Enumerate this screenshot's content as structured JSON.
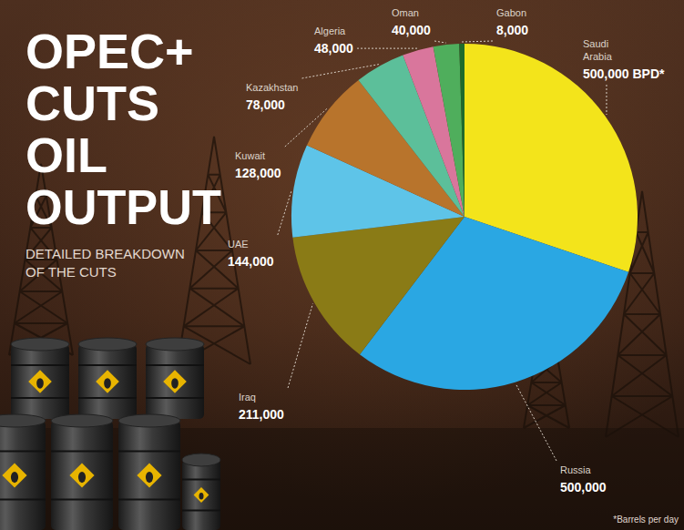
{
  "chart_data": {
    "type": "pie",
    "title": "OPEC+ CUTS OIL OUTPUT",
    "subtitle": "DETAILED BREAKDOWN OF THE CUTS",
    "categories": [
      "Saudi Arabia",
      "Russia",
      "Iraq",
      "UAE",
      "Kuwait",
      "Kazakhstan",
      "Algeria",
      "Oman",
      "Gabon"
    ],
    "values": [
      500000,
      500000,
      211000,
      144000,
      128000,
      78000,
      48000,
      40000,
      8000
    ],
    "value_labels": [
      "500,000 BPD*",
      "500,000",
      "211,000",
      "144,000",
      "128,000",
      "78,000",
      "48,000",
      "40,000",
      "8,000"
    ],
    "colors": [
      "#f3e41b",
      "#2aa7e3",
      "#8a7b16",
      "#5ec4e8",
      "#b8742c",
      "#5cbf9a",
      "#d9769c",
      "#4fae5c",
      "#1e6a2c"
    ],
    "data_labels": true,
    "footnote": "*Barrels per day"
  }
}
